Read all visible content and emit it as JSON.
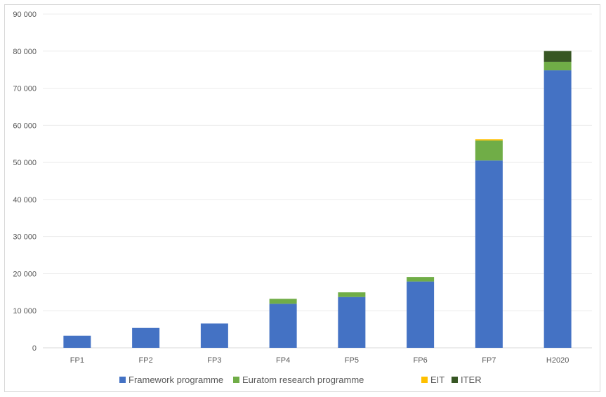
{
  "chart_data": {
    "type": "bar",
    "stacked": true,
    "categories": [
      "FP1",
      "FP2",
      "FP3",
      "FP4",
      "FP5",
      "FP6",
      "FP7",
      "H2020"
    ],
    "series": [
      {
        "name": "Framework programme",
        "color": "#4472c4",
        "values": [
          3271,
          5357,
          6552,
          11879,
          13700,
          17883,
          50521,
          74828
        ]
      },
      {
        "name": "Euratom research programme",
        "color": "#70ad47",
        "values": [
          0,
          0,
          0,
          1345,
          1260,
          1230,
          5400,
          2300
        ]
      },
      {
        "name": "EIT",
        "color": "#ffc000",
        "values": [
          0,
          0,
          0,
          0,
          0,
          0,
          309,
          0
        ]
      },
      {
        "name": "ITER",
        "color": "#375623",
        "values": [
          0,
          0,
          0,
          0,
          0,
          0,
          0,
          2900
        ]
      }
    ],
    "ylim": [
      0,
      90000
    ],
    "yticks": [
      "0",
      "10 000",
      "20 000",
      "30 000",
      "40 000",
      "50 000",
      "60 000",
      "70 000",
      "80 000",
      "90 000"
    ],
    "grid": true,
    "legend": "bottom"
  }
}
